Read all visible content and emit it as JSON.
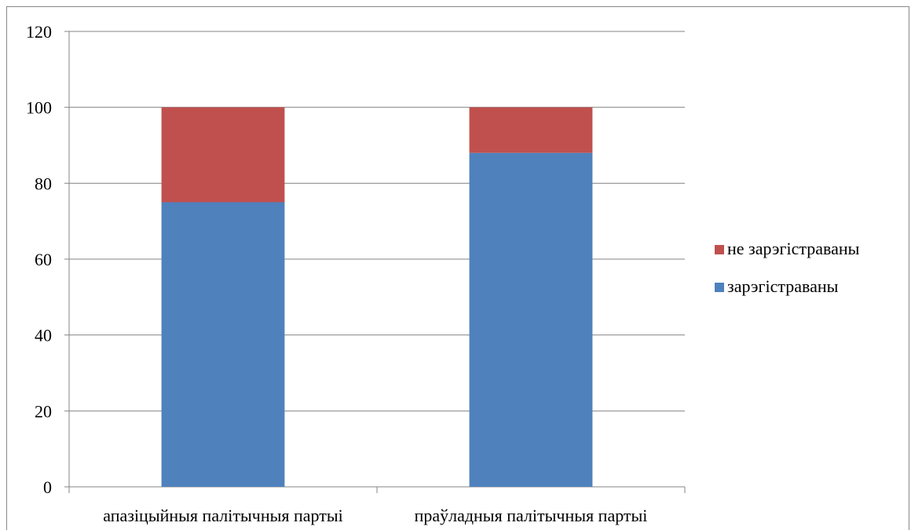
{
  "chart_data": {
    "type": "bar",
    "stacked": true,
    "categories": [
      "апазіцыйныя палітычныя партыі",
      "праўладныя палітычныя партыі"
    ],
    "series": [
      {
        "name": "зарэгістраваны",
        "values": [
          75,
          88
        ],
        "color": "#4F81BD"
      },
      {
        "name": "не зарэгістраваны",
        "values": [
          25,
          12
        ],
        "color": "#C0504D"
      }
    ],
    "ylim": [
      0,
      120
    ],
    "yticks": [
      0,
      20,
      40,
      60,
      80,
      100,
      120
    ],
    "grid": true,
    "legend_position": "right",
    "title": "",
    "xlabel": "",
    "ylabel": ""
  }
}
